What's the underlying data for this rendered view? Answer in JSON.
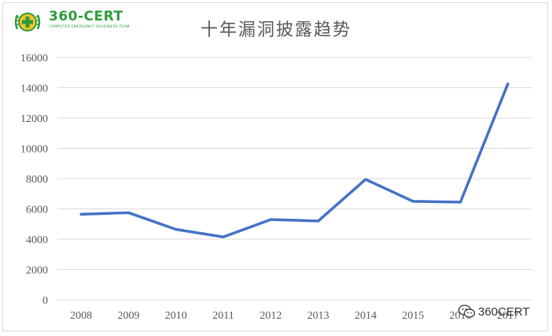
{
  "logo": {
    "name": "360-CERT",
    "subtitle": "COMPUTER EMERGENCY READINESS TEAM"
  },
  "watermark": {
    "text": "360CERT"
  },
  "colors": {
    "line": "#4472c4",
    "grid": "#d9d9d9",
    "text": "#595959",
    "brand": "#2e9b3a"
  },
  "chart_data": {
    "type": "line",
    "title": "十年漏洞披露趋势",
    "xlabel": "",
    "ylabel": "",
    "categories": [
      "2008",
      "2009",
      "2010",
      "2011",
      "2012",
      "2013",
      "2014",
      "2015",
      "2016",
      "2017"
    ],
    "series": [
      {
        "values": [
          5650,
          5750,
          4650,
          4150,
          5300,
          5200,
          7950,
          6500,
          6450,
          14250
        ]
      }
    ],
    "ylim": [
      0,
      16000
    ],
    "yticks": [
      0,
      2000,
      4000,
      6000,
      8000,
      10000,
      12000,
      14000,
      16000
    ],
    "grid": true,
    "legend": "none"
  }
}
